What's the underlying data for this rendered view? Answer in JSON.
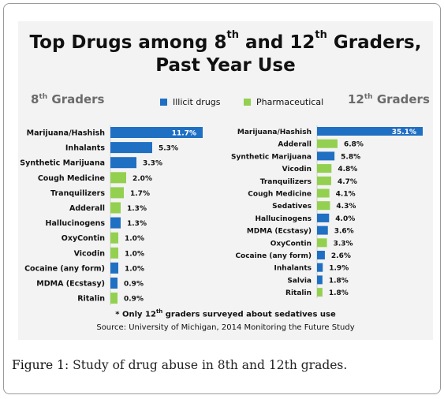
{
  "title": {
    "line1_pre": "Top Drugs among  8",
    "sup1": "th",
    "line1_mid": " and 12",
    "sup2": "th",
    "line1_post": " Graders,",
    "line2": "Past Year Use"
  },
  "groups": {
    "left_num": "8",
    "left_sup": "th",
    "left_rest": " Graders",
    "right_num": "12",
    "right_sup": "th",
    "right_rest": " Graders"
  },
  "legend": {
    "illicit": "Illicit drugs",
    "pharma": "Pharmaceutical"
  },
  "colors": {
    "illicit": "#1f6fc3",
    "pharma": "#93d050"
  },
  "chart_data": [
    {
      "type": "bar",
      "orientation": "horizontal",
      "title": "8th Graders",
      "categories": [
        "Marijuana/Hashish",
        "Inhalants",
        "Synthetic Marijuana",
        "Cough Medicine",
        "Tranquilizers",
        "Adderall",
        "Hallucinogens",
        "OxyContin",
        "Vicodin",
        "Cocaine (any form)",
        "MDMA (Ecstasy)",
        "Ritalin"
      ],
      "values": [
        11.7,
        5.3,
        3.3,
        2.0,
        1.7,
        1.3,
        1.3,
        1.0,
        1.0,
        1.0,
        0.9,
        0.9
      ],
      "labels": [
        "11.7%",
        "5.3%",
        "3.3%",
        "2.0%",
        "1.7%",
        "1.3%",
        "1.3%",
        "1.0%",
        "1.0%",
        "1.0%",
        "0.9%",
        "0.9%"
      ],
      "kinds": [
        "illicit",
        "illicit",
        "illicit",
        "pharma",
        "pharma",
        "pharma",
        "illicit",
        "pharma",
        "pharma",
        "illicit",
        "illicit",
        "pharma"
      ]
    },
    {
      "type": "bar",
      "orientation": "horizontal",
      "title": "12th Graders",
      "categories": [
        "Marijuana/Hashish",
        "Adderall",
        "Synthetic Marijuana",
        "Vicodin",
        "Tranquilizers",
        "Cough Medicine",
        "Sedatives",
        "Hallucinogens",
        "MDMA (Ecstasy)",
        "OxyContin",
        "Cocaine (any form)",
        "Inhalants",
        "Salvia",
        "Ritalin"
      ],
      "values": [
        35.1,
        6.8,
        5.8,
        4.8,
        4.7,
        4.1,
        4.3,
        4.0,
        3.6,
        3.3,
        2.6,
        1.9,
        1.8,
        1.8
      ],
      "labels": [
        "35.1%",
        "6.8%",
        "5.8%",
        "4.8%",
        "4.7%",
        "4.1%",
        "4.3%",
        "4.0%",
        "3.6%",
        "3.3%",
        "2.6%",
        "1.9%",
        "1.8%",
        "1.8%"
      ],
      "kinds": [
        "illicit",
        "pharma",
        "illicit",
        "pharma",
        "pharma",
        "pharma",
        "pharma",
        "illicit",
        "illicit",
        "pharma",
        "illicit",
        "illicit",
        "illicit",
        "pharma"
      ]
    }
  ],
  "note": {
    "pre": "* Only 12",
    "sup": "th",
    "post": " graders surveyed about sedatives use"
  },
  "source": "Source: University of Michigan, 2014 Monitoring the Future Study",
  "caption": {
    "label": "Figure 1",
    "text": ": Study of drug abuse in 8th and 12th grades."
  }
}
